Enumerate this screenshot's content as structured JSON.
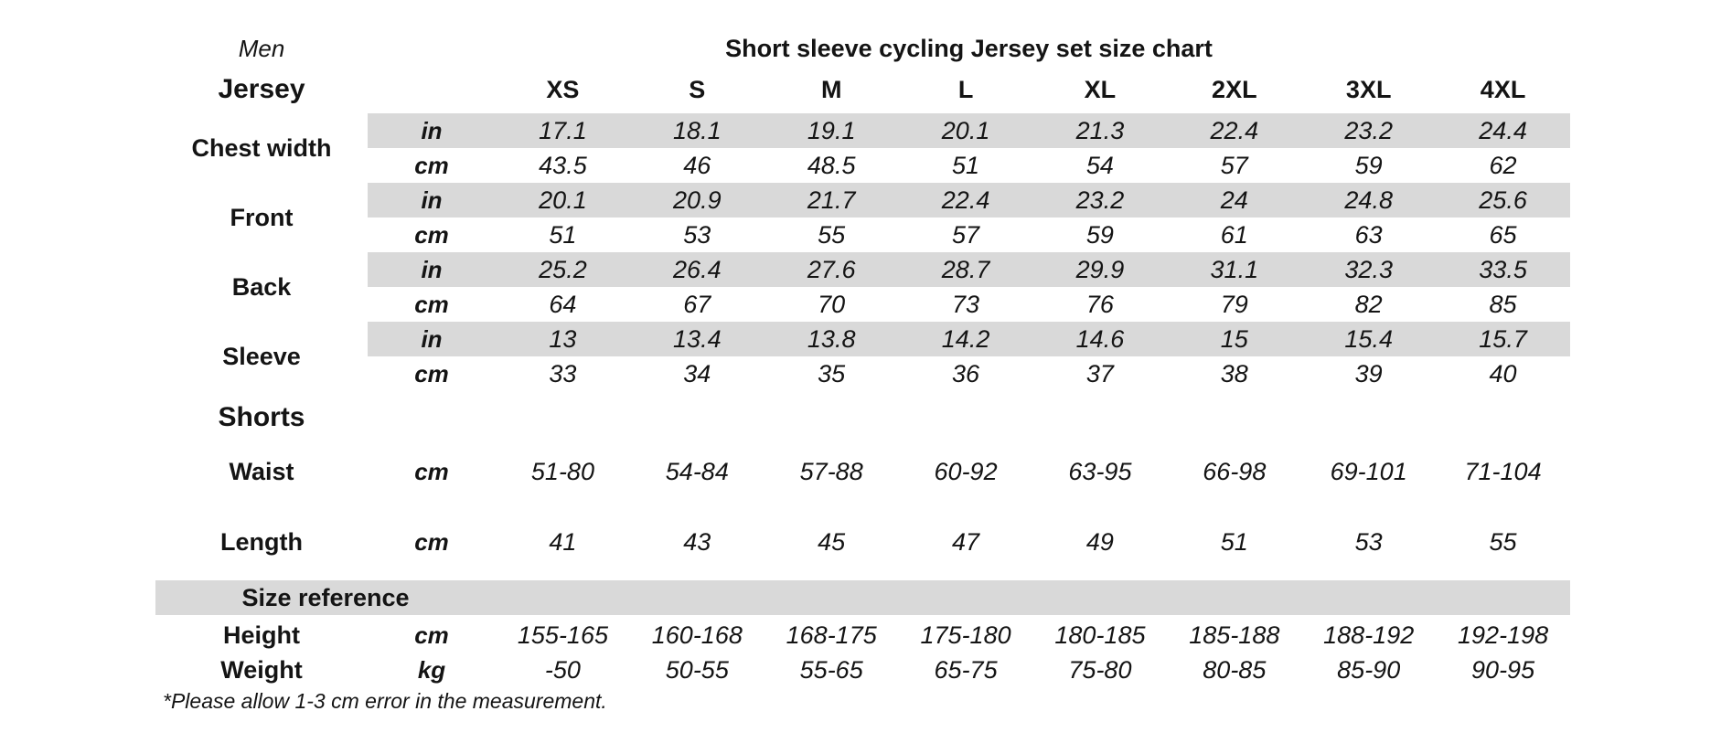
{
  "colors": {
    "shaded_band": "#d9d9d9",
    "text": "#141414",
    "background": "#ffffff"
  },
  "chart_data": {
    "type": "table",
    "gender": "Men",
    "title": "Short sleeve cycling Jersey set size chart",
    "sizes": [
      "XS",
      "S",
      "M",
      "L",
      "XL",
      "2XL",
      "3XL",
      "4XL"
    ],
    "jersey": {
      "heading": "Jersey",
      "rows": [
        {
          "label": "Chest width",
          "units": [
            {
              "unit": "in",
              "shaded": true,
              "values": [
                "17.1",
                "18.1",
                "19.1",
                "20.1",
                "21.3",
                "22.4",
                "23.2",
                "24.4"
              ]
            },
            {
              "unit": "cm",
              "shaded": false,
              "values": [
                "43.5",
                "46",
                "48.5",
                "51",
                "54",
                "57",
                "59",
                "62"
              ]
            }
          ]
        },
        {
          "label": "Front",
          "units": [
            {
              "unit": "in",
              "shaded": true,
              "values": [
                "20.1",
                "20.9",
                "21.7",
                "22.4",
                "23.2",
                "24",
                "24.8",
                "25.6"
              ]
            },
            {
              "unit": "cm",
              "shaded": false,
              "values": [
                "51",
                "53",
                "55",
                "57",
                "59",
                "61",
                "63",
                "65"
              ]
            }
          ]
        },
        {
          "label": "Back",
          "units": [
            {
              "unit": "in",
              "shaded": true,
              "values": [
                "25.2",
                "26.4",
                "27.6",
                "28.7",
                "29.9",
                "31.1",
                "32.3",
                "33.5"
              ]
            },
            {
              "unit": "cm",
              "shaded": false,
              "values": [
                "64",
                "67",
                "70",
                "73",
                "76",
                "79",
                "82",
                "85"
              ]
            }
          ]
        },
        {
          "label": "Sleeve",
          "units": [
            {
              "unit": "in",
              "shaded": true,
              "values": [
                "13",
                "13.4",
                "13.8",
                "14.2",
                "14.6",
                "15",
                "15.4",
                "15.7"
              ]
            },
            {
              "unit": "cm",
              "shaded": false,
              "values": [
                "33",
                "34",
                "35",
                "36",
                "37",
                "38",
                "39",
                "40"
              ]
            }
          ]
        }
      ]
    },
    "shorts": {
      "heading": "Shorts",
      "rows": [
        {
          "label": "Waist",
          "unit": "cm",
          "values": [
            "51-80",
            "54-84",
            "57-88",
            "60-92",
            "63-95",
            "66-98",
            "69-101",
            "71-104"
          ]
        },
        {
          "label": "Length",
          "unit": "cm",
          "values": [
            "41",
            "43",
            "45",
            "47",
            "49",
            "51",
            "53",
            "55"
          ]
        }
      ]
    },
    "size_reference": {
      "heading": "Size reference",
      "rows": [
        {
          "label": "Height",
          "unit": "cm",
          "values": [
            "155-165",
            "160-168",
            "168-175",
            "175-180",
            "180-185",
            "185-188",
            "188-192",
            "192-198"
          ]
        },
        {
          "label": "Weight",
          "unit": "kg",
          "values": [
            "-50",
            "50-55",
            "55-65",
            "65-75",
            "75-80",
            "80-85",
            "85-90",
            "90-95"
          ]
        }
      ]
    },
    "footnote": "*Please allow 1-3 cm error in the measurement."
  }
}
